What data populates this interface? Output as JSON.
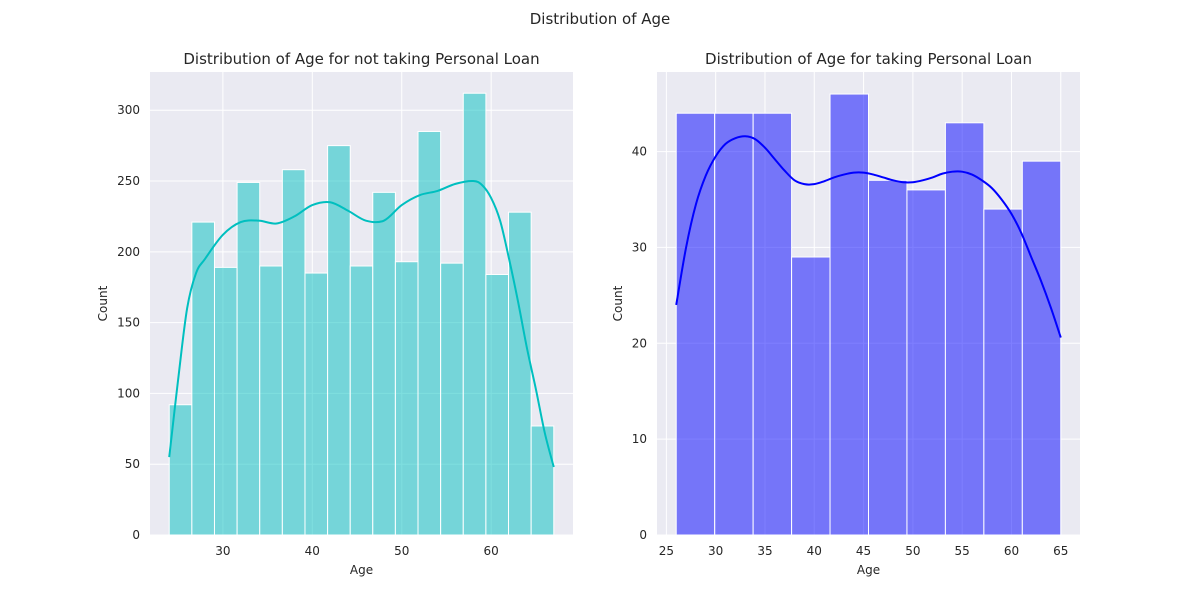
{
  "figure": {
    "suptitle": "Distribution of Age"
  },
  "chart_data": [
    {
      "type": "bar",
      "title": "Distribution of Age for not taking Personal Loan",
      "xlabel": "Age",
      "ylabel": "Count",
      "xlim": [
        21.85,
        69.15
      ],
      "ylim": [
        0,
        327
      ],
      "xticks": [
        30,
        40,
        50,
        60
      ],
      "yticks": [
        0,
        50,
        100,
        150,
        200,
        250,
        300
      ],
      "grid": true,
      "background_color": "#eaeaf2",
      "bar_color": "#00bfbf",
      "kde_color": "#00bfbf",
      "bin_edges": [
        24,
        26.53,
        29.06,
        31.59,
        34.12,
        36.65,
        39.18,
        41.71,
        44.24,
        46.76,
        49.29,
        51.82,
        54.35,
        56.88,
        59.41,
        61.94,
        64.47,
        67
      ],
      "values": [
        92,
        221,
        189,
        249,
        190,
        258,
        185,
        275,
        190,
        242,
        193,
        285,
        192,
        312,
        184,
        228,
        77
      ],
      "kde": {
        "x": [
          24,
          25,
          26,
          27,
          28,
          30,
          32,
          34,
          36,
          38,
          40,
          42,
          44,
          46,
          48,
          50,
          52,
          54,
          56,
          58,
          59,
          60,
          61,
          62,
          63,
          64,
          65,
          66,
          67
        ],
        "y": [
          55,
          110,
          160,
          185,
          195,
          212,
          221,
          222,
          220,
          225,
          233,
          235,
          229,
          222,
          222,
          233,
          240,
          243,
          248,
          250,
          247,
          238,
          222,
          195,
          165,
          132,
          103,
          72,
          48
        ]
      }
    },
    {
      "type": "bar",
      "title": "Distribution of Age for taking Personal Loan",
      "xlabel": "Age",
      "ylabel": "Count",
      "xlim": [
        24.05,
        66.95
      ],
      "ylim": [
        0,
        48.3
      ],
      "xticks": [
        25,
        30,
        35,
        40,
        45,
        50,
        55,
        60,
        65
      ],
      "yticks": [
        0,
        10,
        20,
        30,
        40
      ],
      "grid": true,
      "background_color": "#eaeaf2",
      "bar_color": "#0000ff",
      "kde_color": "#0000ff",
      "bin_edges": [
        26,
        29.9,
        33.8,
        37.7,
        41.6,
        45.5,
        49.4,
        53.3,
        57.2,
        61.1,
        65
      ],
      "values": [
        44,
        44,
        44,
        29,
        46,
        37,
        36,
        43,
        34,
        39
      ],
      "kde": {
        "x": [
          26,
          27,
          28,
          29,
          30,
          31,
          32,
          33,
          34,
          35,
          36,
          37,
          38,
          39,
          40,
          41,
          42,
          43,
          44,
          45,
          46,
          47,
          48,
          49,
          50,
          51,
          52,
          53,
          54,
          55,
          56,
          57,
          58,
          59,
          60,
          61,
          62,
          63,
          64,
          65
        ],
        "y": [
          24,
          30,
          34.5,
          37.5,
          39.5,
          40.8,
          41.4,
          41.6,
          41.3,
          40.4,
          39.2,
          38,
          37,
          36.6,
          36.6,
          36.9,
          37.3,
          37.6,
          37.8,
          37.8,
          37.6,
          37.3,
          37,
          36.8,
          36.8,
          37,
          37.3,
          37.7,
          37.9,
          37.9,
          37.6,
          37,
          36.2,
          35,
          33.5,
          31.5,
          29,
          26.5,
          23.7,
          20.6
        ]
      }
    }
  ]
}
